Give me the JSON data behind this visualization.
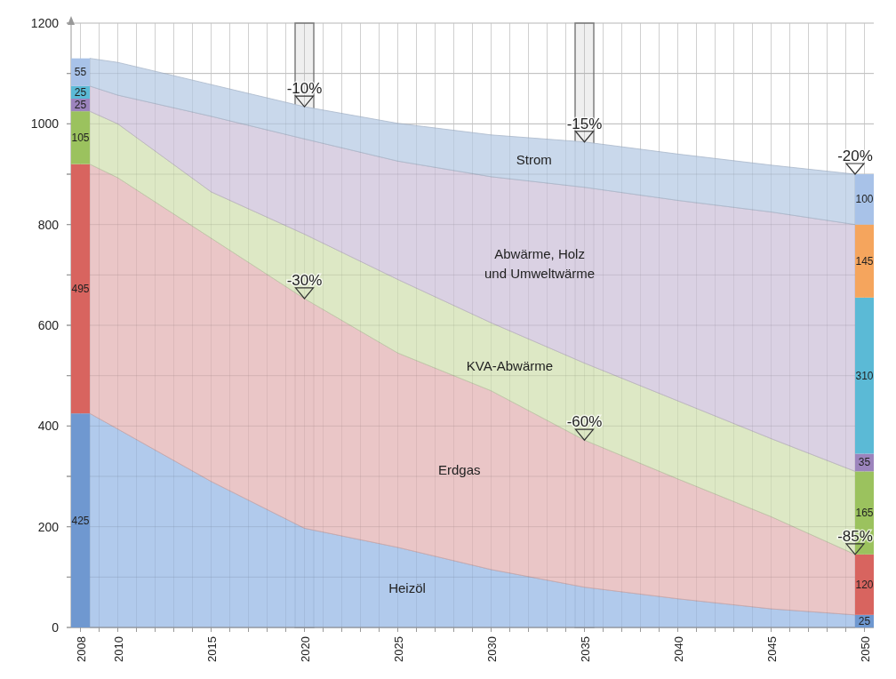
{
  "chart_data": [
    {
      "type": "area",
      "stacked": true,
      "grid": true,
      "xlim": [
        2007.5,
        2050.5
      ],
      "xticks": [
        2008,
        {
          "value": 2009,
          "label": null
        },
        2010,
        {
          "value": 2011,
          "label": null
        },
        {
          "value": 2012,
          "label": null
        },
        {
          "value": 2013,
          "label": null
        },
        {
          "value": 2014,
          "label": null
        },
        2015,
        {
          "value": 2016,
          "label": null
        },
        {
          "value": 2017,
          "label": null
        },
        {
          "value": 2018,
          "label": null
        },
        {
          "value": 2019,
          "label": null
        },
        2020,
        {
          "value": 2021,
          "label": null
        },
        {
          "value": 2022,
          "label": null
        },
        {
          "value": 2023,
          "label": null
        },
        {
          "value": 2024,
          "label": null
        },
        2025,
        {
          "value": 2026,
          "label": null
        },
        {
          "value": 2027,
          "label": null
        },
        {
          "value": 2028,
          "label": null
        },
        {
          "value": 2029,
          "label": null
        },
        2030,
        {
          "value": 2031,
          "label": null
        },
        {
          "value": 2032,
          "label": null
        },
        {
          "value": 2033,
          "label": null
        },
        {
          "value": 2034,
          "label": null
        },
        2035,
        {
          "value": 2036,
          "label": null
        },
        {
          "value": 2037,
          "label": null
        },
        {
          "value": 2038,
          "label": null
        },
        {
          "value": 2039,
          "label": null
        },
        2040,
        {
          "value": 2041,
          "label": null
        },
        {
          "value": 2042,
          "label": null
        },
        {
          "value": 2043,
          "label": null
        },
        {
          "value": 2044,
          "label": null
        },
        2045,
        {
          "value": 2046,
          "label": null
        },
        {
          "value": 2047,
          "label": null
        },
        {
          "value": 2048,
          "label": null
        },
        {
          "value": 2049,
          "label": null
        },
        2050
      ],
      "ylim": [
        0,
        1200
      ],
      "yticks": [
        0,
        {
          "value": 100,
          "label": null
        },
        200,
        {
          "value": 300,
          "label": null
        },
        400,
        {
          "value": 500,
          "label": null
        },
        600,
        {
          "value": 700,
          "label": null
        },
        800,
        {
          "value": 900,
          "label": null
        },
        1000,
        {
          "value": 1100,
          "label": null
        },
        1200
      ],
      "series": [
        {
          "name": "Heizöl",
          "color": "#a9c4ea",
          "x": [
            2008.5,
            2010,
            2015,
            2020,
            2025,
            2030,
            2035,
            2040,
            2045,
            2049.5
          ],
          "values": [
            425,
            394,
            290,
            197,
            159,
            115,
            80,
            57,
            37,
            25
          ]
        },
        {
          "name": "Erdgas",
          "color": "#e8c0c1",
          "x": [
            2008.5,
            2010,
            2015,
            2020,
            2025,
            2030,
            2035,
            2040,
            2045,
            2049.5
          ],
          "values": [
            495,
            499,
            483,
            456,
            386,
            355,
            292,
            238,
            183,
            120
          ]
        },
        {
          "name": "KVA-Abwärme",
          "color": "#d9e5bf",
          "x": [
            2008.5,
            2010,
            2015,
            2020,
            2025,
            2030,
            2035,
            2040,
            2045,
            2049.5
          ],
          "values": [
            105,
            107,
            92,
            128,
            146,
            135,
            153,
            155,
            155,
            165
          ]
        },
        {
          "name": "Abwärme, Holz\nund Umweltwärme",
          "color": "#d6cce0",
          "x": [
            2008.5,
            2010,
            2015,
            2020,
            2025,
            2030,
            2035,
            2040,
            2045,
            2049.5
          ],
          "values": [
            50,
            57,
            150,
            189,
            235,
            290,
            349,
            398,
            450,
            490
          ]
        },
        {
          "name": "Strom",
          "color": "#c3d4e9",
          "x": [
            2008.5,
            2010,
            2015,
            2020,
            2025,
            2030,
            2035,
            2040,
            2045,
            2049.5
          ],
          "values": [
            55,
            65,
            63,
            64,
            75,
            83,
            90,
            92,
            93,
            100
          ]
        }
      ],
      "bands": [
        {
          "axis": "x",
          "from": 2019.5,
          "to": 2020.5,
          "color": "#7f7f7f"
        },
        {
          "axis": "x",
          "from": 2034.5,
          "to": 2035.5,
          "color": "#7f7f7f"
        }
      ],
      "annotations": [
        {
          "text": "-10%",
          "x": 2020,
          "y": 1034
        },
        {
          "text": "-30%",
          "x": 2020,
          "y": 653
        },
        {
          "text": "-15%",
          "x": 2035,
          "y": 964
        },
        {
          "text": "-60%",
          "x": 2035,
          "y": 372
        },
        {
          "text": "-20%",
          "x": 2049.5,
          "y": 900
        },
        {
          "text": "-85%",
          "x": 2049.5,
          "y": 145
        }
      ]
    },
    {
      "type": "bar",
      "stacked": true,
      "tick_labels": false,
      "xlim": [
        2007.5,
        2050.5
      ],
      "ylim": [
        0,
        1200
      ],
      "x": [
        2008,
        2050
      ],
      "yticks": [
        0,
        {
          "value": 100,
          "label": null
        },
        200,
        {
          "value": 300,
          "label": null
        },
        400,
        {
          "value": 500,
          "label": null
        },
        600,
        {
          "value": 700,
          "label": null
        },
        800,
        {
          "value": 900,
          "label": null
        },
        1000,
        {
          "value": 1100,
          "label": null
        },
        1200
      ],
      "series": [
        {
          "color": "#6f98d0",
          "values": [
            425,
            25
          ],
          "value_labels": [
            "425",
            "25"
          ]
        },
        {
          "color": "#d8645f",
          "values": [
            495,
            120
          ],
          "value_labels": [
            "495",
            "120"
          ]
        },
        {
          "color": "#9bc25e",
          "values": [
            105,
            165
          ],
          "value_labels": [
            "105",
            "165"
          ]
        },
        {
          "color": "#9c84bd",
          "values": [
            25,
            35
          ],
          "value_labels": [
            "25",
            "35"
          ]
        },
        {
          "color": "#5bbad6",
          "values": [
            25,
            310
          ],
          "value_labels": [
            "25",
            "310"
          ]
        },
        {
          "color": "#f5a55d",
          "values": [
            null,
            145
          ],
          "value_labels": [
            null,
            "145"
          ]
        },
        {
          "color": "#a8c2e8",
          "values": [
            55,
            100
          ],
          "value_labels": [
            "55",
            "100"
          ]
        }
      ]
    }
  ]
}
